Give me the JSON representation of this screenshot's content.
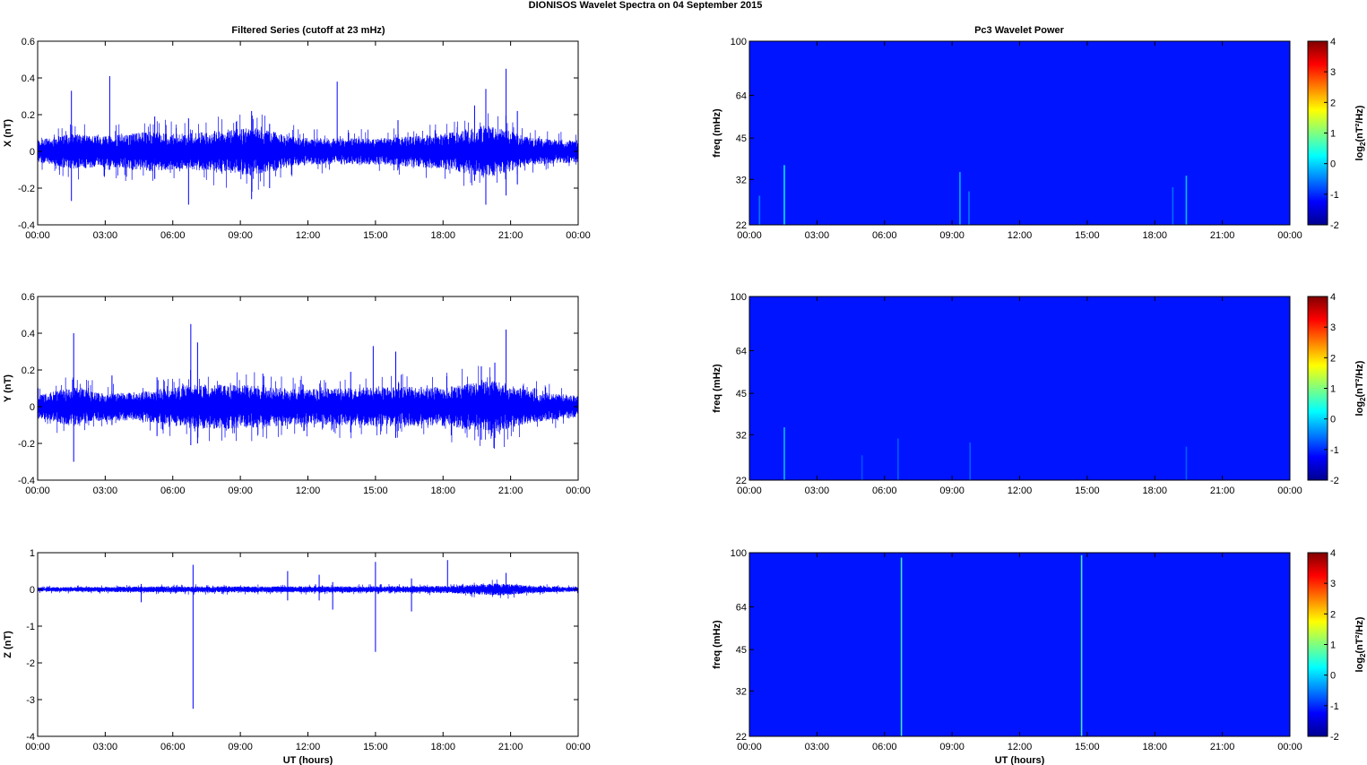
{
  "figure": {
    "title": "DIONISOS Wavelet Spectra on 04 September 2015",
    "left_title": "Filtered Series (cutoff at 23 mHz)",
    "right_title": "Pc3 Wavelet Power",
    "time_label": "UT (hours)"
  },
  "chart_data": [
    {
      "type": "line",
      "panel": "left-1",
      "ylabel": "X (nT)",
      "ylim": [
        -0.4,
        0.6
      ],
      "yticks": [
        "0.6",
        "0.4",
        "0.2",
        "0",
        "-0.2",
        "-0.4"
      ],
      "xticks": [
        "00:00",
        "03:00",
        "06:00",
        "09:00",
        "12:00",
        "15:00",
        "18:00",
        "21:00",
        "00:00"
      ],
      "xlabel": "",
      "series_color": "#0000ff",
      "noise_envelope": [
        [
          0,
          0.05
        ],
        [
          1.5,
          0.08
        ],
        [
          3,
          0.07
        ],
        [
          5,
          0.09
        ],
        [
          6.5,
          0.08
        ],
        [
          9.5,
          0.11
        ],
        [
          12,
          0.06
        ],
        [
          15,
          0.06
        ],
        [
          18,
          0.08
        ],
        [
          20,
          0.12
        ],
        [
          22,
          0.06
        ],
        [
          24,
          0.05
        ]
      ],
      "spikes": [
        [
          1.5,
          0.33,
          -0.27
        ],
        [
          3.2,
          0.41,
          -0.1
        ],
        [
          5.2,
          0.19,
          -0.15
        ],
        [
          6.7,
          0.18,
          -0.29
        ],
        [
          9.5,
          0.22,
          -0.26
        ],
        [
          10.3,
          0.15,
          -0.2
        ],
        [
          13.3,
          0.38,
          -0.05
        ],
        [
          16,
          0.17,
          -0.1
        ],
        [
          19.4,
          0.25,
          -0.16
        ],
        [
          19.9,
          0.34,
          -0.29
        ],
        [
          20.8,
          0.45,
          -0.24
        ],
        [
          21.3,
          0.22,
          -0.18
        ]
      ]
    },
    {
      "type": "line",
      "panel": "left-2",
      "ylabel": "Y (nT)",
      "ylim": [
        -0.4,
        0.6
      ],
      "yticks": [
        "0.6",
        "0.4",
        "0.2",
        "0",
        "-0.2",
        "-0.4"
      ],
      "xticks": [
        "00:00",
        "03:00",
        "06:00",
        "09:00",
        "12:00",
        "15:00",
        "18:00",
        "21:00",
        "00:00"
      ],
      "xlabel": "",
      "series_color": "#0000ff",
      "noise_envelope": [
        [
          0,
          0.05
        ],
        [
          1.5,
          0.09
        ],
        [
          3,
          0.06
        ],
        [
          5,
          0.07
        ],
        [
          6.8,
          0.1
        ],
        [
          9,
          0.1
        ],
        [
          12,
          0.08
        ],
        [
          15,
          0.09
        ],
        [
          18,
          0.09
        ],
        [
          20.3,
          0.12
        ],
        [
          22,
          0.07
        ],
        [
          24,
          0.05
        ]
      ],
      "spikes": [
        [
          1.6,
          0.4,
          -0.3
        ],
        [
          3.3,
          0.17,
          -0.1
        ],
        [
          5.3,
          0.16,
          -0.16
        ],
        [
          6.8,
          0.45,
          -0.21
        ],
        [
          7.1,
          0.35,
          -0.2
        ],
        [
          10,
          0.18,
          -0.12
        ],
        [
          13.9,
          0.19,
          -0.14
        ],
        [
          14.9,
          0.33,
          -0.1
        ],
        [
          15.9,
          0.3,
          -0.17
        ],
        [
          19.7,
          0.22,
          -0.18
        ],
        [
          20.3,
          0.24,
          -0.17
        ],
        [
          20.8,
          0.42,
          -0.12
        ]
      ]
    },
    {
      "type": "line",
      "panel": "left-3",
      "ylabel": "Z (nT)",
      "ylim": [
        -4,
        1
      ],
      "yticks": [
        "1",
        "0",
        "-1",
        "-2",
        "-3",
        "-4"
      ],
      "xticks": [
        "00:00",
        "03:00",
        "06:00",
        "09:00",
        "12:00",
        "15:00",
        "18:00",
        "21:00",
        "00:00"
      ],
      "xlabel": "UT (hours)",
      "series_color": "#0000ff",
      "noise_envelope": [
        [
          0,
          0.05
        ],
        [
          3,
          0.06
        ],
        [
          6,
          0.07
        ],
        [
          9,
          0.07
        ],
        [
          12,
          0.07
        ],
        [
          15,
          0.07
        ],
        [
          18,
          0.08
        ],
        [
          20.5,
          0.14
        ],
        [
          22,
          0.08
        ],
        [
          24,
          0.05
        ]
      ],
      "spikes": [
        [
          4.6,
          0.15,
          -0.35
        ],
        [
          6.9,
          0.67,
          -3.25
        ],
        [
          11.1,
          0.5,
          -0.3
        ],
        [
          12.5,
          0.4,
          -0.3
        ],
        [
          13.1,
          0.2,
          -0.55
        ],
        [
          15,
          0.75,
          -1.7
        ],
        [
          16.6,
          0.3,
          -0.6
        ],
        [
          18.2,
          0.8,
          -0.1
        ],
        [
          20.8,
          0.45,
          -0.1
        ]
      ]
    },
    {
      "type": "heatmap",
      "panel": "right-1",
      "ylabel": "freq (mHz)",
      "yticks": [
        "100",
        "64",
        "45",
        "32",
        "22"
      ],
      "yscale": "log",
      "ylim": [
        22,
        100
      ],
      "xticks": [
        "00:00",
        "03:00",
        "06:00",
        "09:00",
        "12:00",
        "15:00",
        "18:00",
        "21:00",
        "00:00"
      ],
      "xlabel": "",
      "colorbar_label": "log2(nT²/Hz)",
      "colorbar_ticks": [
        "4",
        "3",
        "2",
        "1",
        "0",
        "-1",
        "-2"
      ],
      "clim": [
        -2,
        4
      ],
      "background_level": -1.7,
      "streaks": [
        [
          0.45,
          28,
          -1.1
        ],
        [
          1.55,
          36,
          -0.3
        ],
        [
          9.35,
          34,
          -0.7
        ],
        [
          9.75,
          29,
          -1.1
        ],
        [
          18.8,
          30,
          -1.2
        ],
        [
          19.4,
          33,
          -0.6
        ]
      ]
    },
    {
      "type": "heatmap",
      "panel": "right-2",
      "ylabel": "freq (mHz)",
      "yticks": [
        "100",
        "64",
        "45",
        "32",
        "22"
      ],
      "yscale": "log",
      "ylim": [
        22,
        100
      ],
      "xticks": [
        "00:00",
        "03:00",
        "06:00",
        "09:00",
        "12:00",
        "15:00",
        "18:00",
        "21:00",
        "00:00"
      ],
      "xlabel": "",
      "colorbar_label": "log2(nT²/Hz)",
      "colorbar_ticks": [
        "4",
        "3",
        "2",
        "1",
        "0",
        "-1",
        "-2"
      ],
      "clim": [
        -2,
        4
      ],
      "background_level": -1.7,
      "streaks": [
        [
          1.55,
          34,
          -0.6
        ],
        [
          5,
          27,
          -1.4
        ],
        [
          6.6,
          31,
          -1.3
        ],
        [
          9.8,
          30,
          -1.3
        ],
        [
          19.4,
          29,
          -1.3
        ]
      ]
    },
    {
      "type": "heatmap",
      "panel": "right-3",
      "ylabel": "freq (mHz)",
      "yticks": [
        "100",
        "64",
        "45",
        "32",
        "22"
      ],
      "yscale": "log",
      "ylim": [
        22,
        100
      ],
      "xticks": [
        "00:00",
        "03:00",
        "06:00",
        "09:00",
        "12:00",
        "15:00",
        "18:00",
        "21:00",
        "00:00"
      ],
      "xlabel": "UT (hours)",
      "colorbar_label": "log2(nT²/Hz)",
      "colorbar_ticks": [
        "4",
        "3",
        "2",
        "1",
        "0",
        "-1",
        "-2"
      ],
      "clim": [
        -2,
        4
      ],
      "background_level": -1.7,
      "streaks": [
        [
          6.75,
          96,
          0.2
        ],
        [
          14.75,
          98,
          0.3
        ]
      ]
    }
  ]
}
